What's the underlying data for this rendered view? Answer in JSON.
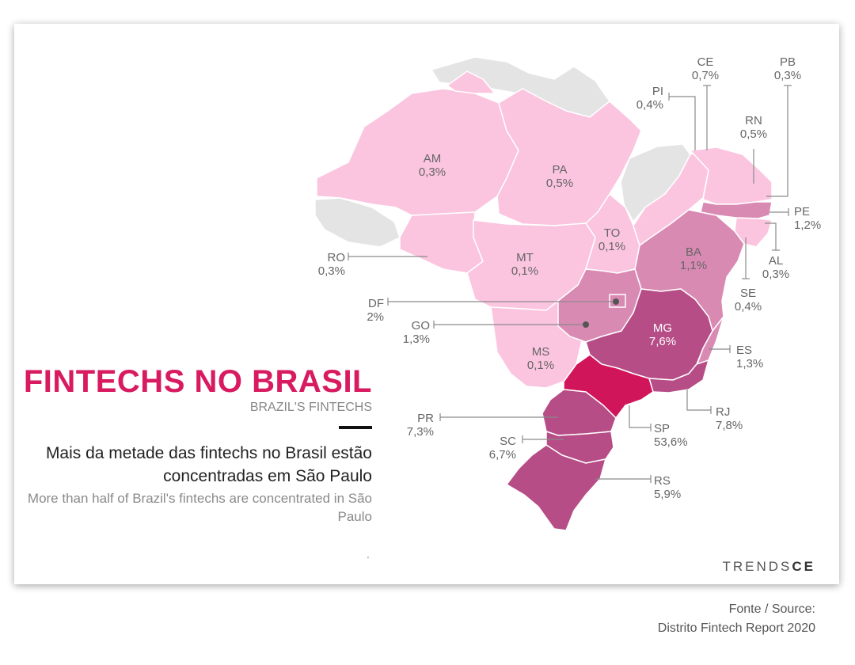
{
  "title": "FINTECHS NO BRASIL",
  "subtitle": "BRAZIL'S FINTECHS",
  "headline_pt": "Mais da metade das fintechs no Brasil estão concentradas em São Paulo",
  "headline_en": "More than half of Brazil's fintechs are concentrated in São Paulo",
  "tick_mark": "'",
  "logo": {
    "part1": "TRENDS",
    "part2": "CE"
  },
  "source": {
    "line1": "Fonte / Source:",
    "line2": "Distrito Fintech Report 2020"
  },
  "colors": {
    "accent": "#d81b60",
    "neighbor": "#e4e4e4",
    "light": "#fbc4df",
    "mid": "#d98ab3",
    "dark": "#b64d86",
    "sp": "#d1155a"
  },
  "states": [
    {
      "code": "AM",
      "value": "0,3%",
      "value_num": 0.3
    },
    {
      "code": "PA",
      "value": "0,5%",
      "value_num": 0.5
    },
    {
      "code": "MT",
      "value": "0,1%",
      "value_num": 0.1
    },
    {
      "code": "TO",
      "value": "0,1%",
      "value_num": 0.1
    },
    {
      "code": "BA",
      "value": "1,1%",
      "value_num": 1.1
    },
    {
      "code": "MG",
      "value": "7,6%",
      "value_num": 7.6
    },
    {
      "code": "MS",
      "value": "0,1%",
      "value_num": 0.1
    },
    {
      "code": "RO",
      "value": "0,3%",
      "value_num": 0.3
    },
    {
      "code": "DF",
      "value": "2%",
      "value_num": 2
    },
    {
      "code": "GO",
      "value": "1,3%",
      "value_num": 1.3
    },
    {
      "code": "PR",
      "value": "7,3%",
      "value_num": 7.3
    },
    {
      "code": "SC",
      "value": "6,7%",
      "value_num": 6.7
    },
    {
      "code": "RS",
      "value": "5,9%",
      "value_num": 5.9
    },
    {
      "code": "SP",
      "value": "53,6%",
      "value_num": 53.6
    },
    {
      "code": "RJ",
      "value": "7,8%",
      "value_num": 7.8
    },
    {
      "code": "ES",
      "value": "1,3%",
      "value_num": 1.3
    },
    {
      "code": "SE",
      "value": "0,4%",
      "value_num": 0.4
    },
    {
      "code": "AL",
      "value": "0,3%",
      "value_num": 0.3
    },
    {
      "code": "PE",
      "value": "1,2%",
      "value_num": 1.2
    },
    {
      "code": "RN",
      "value": "0,5%",
      "value_num": 0.5
    },
    {
      "code": "PI",
      "value": "0,4%",
      "value_num": 0.4
    },
    {
      "code": "CE",
      "value": "0,7%",
      "value_num": 0.7
    },
    {
      "code": "PB",
      "value": "0,3%",
      "value_num": 0.3
    }
  ]
}
